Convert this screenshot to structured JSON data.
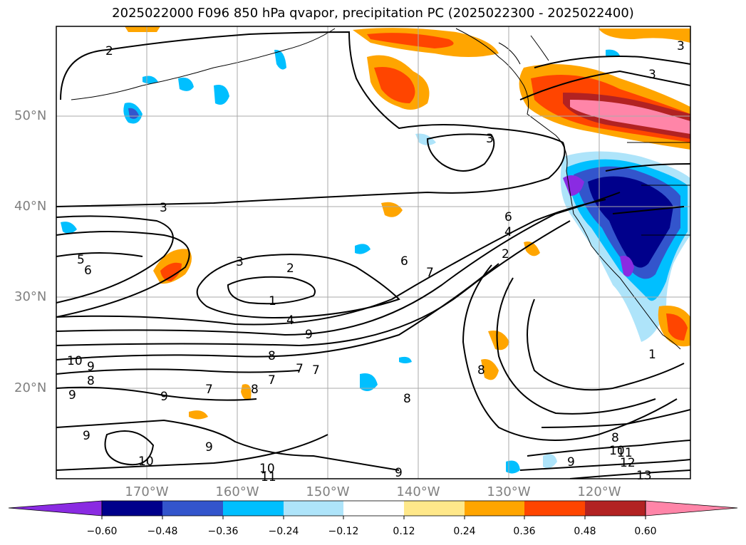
{
  "title": "2025022000 F096 850 hPa qvapor, precipitation PC (2025022300 - 2025022400)",
  "map": {
    "lat_ticks": [
      "50°N",
      "40°N",
      "30°N",
      "20°N"
    ],
    "lon_ticks": [
      "170°W",
      "160°W",
      "150°W",
      "140°W",
      "130°W",
      "120°W"
    ],
    "contour_labels": [
      "2",
      "3",
      "3",
      "3",
      "3",
      "5",
      "6",
      "3",
      "2",
      "1",
      "4",
      "9",
      "8",
      "7",
      "7",
      "6",
      "7",
      "6",
      "4",
      "2",
      "8",
      "10",
      "9",
      "8",
      "9",
      "7",
      "8",
      "7",
      "9",
      "8",
      "9",
      "10",
      "10",
      "11",
      "9",
      "9",
      "1",
      "8",
      "10",
      "11",
      "12",
      "13",
      "9"
    ],
    "gridlines": true,
    "coastlines": true
  },
  "colorbar": {
    "tick_labels": [
      "−0.60",
      "−0.48",
      "−0.36",
      "−0.24",
      "−0.12",
      "0.12",
      "0.24",
      "0.36",
      "0.48",
      "0.60"
    ],
    "colors": [
      "#8a2be2",
      "#00008b",
      "#3355cc",
      "#00bfff",
      "#aee4fa",
      "#ffffff",
      "#ffe88a",
      "#ffa500",
      "#ff4500",
      "#b22222",
      "#ff85a8"
    ],
    "extend": "both"
  },
  "colors": {
    "dry_low": "#8a2be2",
    "wet_high": "#ff85a8",
    "contour": "#000000",
    "grid": "#aaaaaa"
  }
}
